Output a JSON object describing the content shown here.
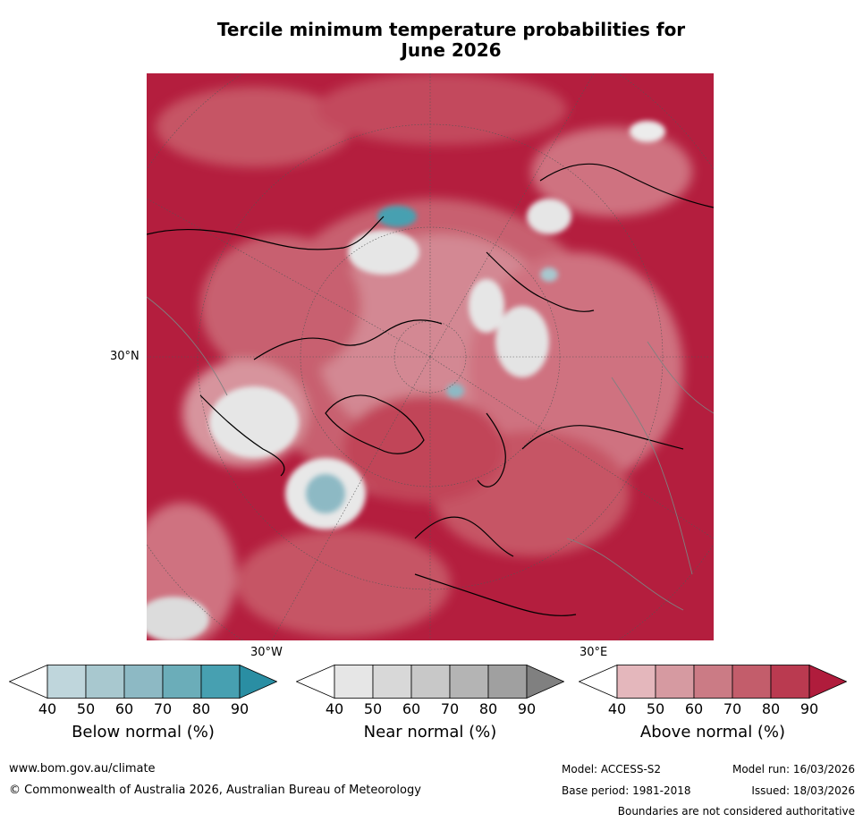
{
  "title_line1": "Tercile minimum temperature probabilities for",
  "title_line2": "June 2026",
  "axis_labels": {
    "lat_30n": "30°N",
    "lon_30w": "30°W",
    "lon_30e": "30°E"
  },
  "legends": [
    {
      "title": "Below normal (%)",
      "ticks": [
        "40",
        "50",
        "60",
        "70",
        "80",
        "90"
      ],
      "colors": [
        "#ffffff",
        "#bfd6dc",
        "#a8c8cf",
        "#8db9c4",
        "#6badb9",
        "#47a0b1",
        "#2a8ea3"
      ]
    },
    {
      "title": "Near normal (%)",
      "ticks": [
        "40",
        "50",
        "60",
        "70",
        "80",
        "90"
      ],
      "colors": [
        "#ffffff",
        "#e6e6e6",
        "#d8d8d8",
        "#c8c8c8",
        "#b4b4b4",
        "#a0a0a0",
        "#808080"
      ]
    },
    {
      "title": "Above normal (%)",
      "ticks": [
        "40",
        "50",
        "60",
        "70",
        "80",
        "90"
      ],
      "colors": [
        "#ffffff",
        "#e4b7bc",
        "#d69aa1",
        "#cb7b85",
        "#c35d6b",
        "#ba3a50",
        "#b01c3c"
      ]
    }
  ],
  "footer": {
    "website": "www.bom.gov.au/climate",
    "copyright": "© Commonwealth of Australia 2026, Australian Bureau of Meteorology",
    "model": "Model: ACCESS-S2",
    "model_run": "Model run: 16/03/2026",
    "base_period": "Base period: 1981-2018",
    "issued": "Issued: 18/03/2026",
    "boundaries": "Boundaries are not considered authoritative"
  }
}
